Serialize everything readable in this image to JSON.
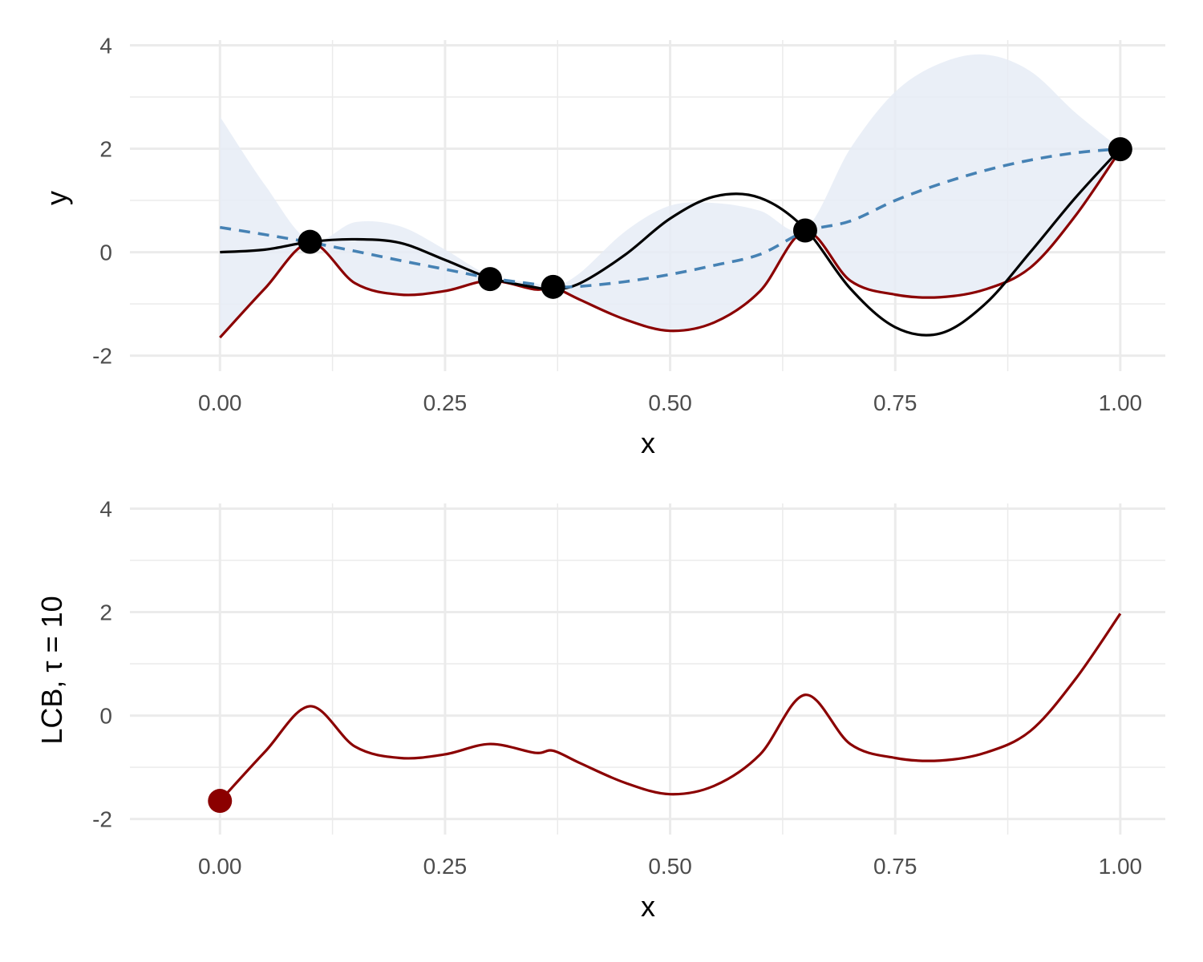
{
  "colors": {
    "truth": "#000000",
    "mean": "#4682b4",
    "lcb": "#8b0000",
    "band": "#e6ecf6",
    "observations": "#000000",
    "lcb_min_point": "#8b0000"
  },
  "chart_data": [
    {
      "type": "line",
      "xlabel": "x",
      "ylabel": "y",
      "xlim": [
        -0.1,
        1.05
      ],
      "ylim": [
        -2.3,
        4.1
      ],
      "x_ticks": [
        0.0,
        0.25,
        0.5,
        0.75,
        1.0
      ],
      "x_tick_labels": [
        "0.00",
        "0.25",
        "0.50",
        "0.75",
        "1.00"
      ],
      "y_ticks": [
        -2,
        0,
        2,
        4
      ],
      "y_tick_labels": [
        "-2",
        "0",
        "2",
        "4"
      ],
      "grid": true,
      "x": [
        0.0,
        0.05,
        0.1,
        0.15,
        0.2,
        0.25,
        0.3,
        0.35,
        0.37,
        0.4,
        0.45,
        0.5,
        0.55,
        0.6,
        0.65,
        0.7,
        0.75,
        0.8,
        0.85,
        0.9,
        0.95,
        1.0
      ],
      "series": [
        {
          "role": "band",
          "lower": [
            -1.65,
            -0.7,
            0.18,
            -0.6,
            -0.82,
            -0.75,
            -0.55,
            -0.72,
            -0.68,
            -0.92,
            -1.3,
            -1.52,
            -1.35,
            -0.75,
            0.4,
            -0.55,
            -0.82,
            -0.87,
            -0.72,
            -0.3,
            0.7,
            1.97
          ],
          "upper": [
            2.62,
            1.3,
            0.22,
            0.58,
            0.5,
            0.05,
            -0.45,
            -0.6,
            -0.68,
            -0.4,
            0.4,
            0.9,
            0.95,
            0.8,
            0.45,
            2.0,
            3.1,
            3.65,
            3.82,
            3.5,
            2.7,
            2.0
          ]
        },
        {
          "role": "truth",
          "style": "solid",
          "values": [
            0.0,
            0.05,
            0.2,
            0.25,
            0.18,
            -0.15,
            -0.5,
            -0.68,
            -0.72,
            -0.6,
            -0.05,
            0.65,
            1.08,
            1.05,
            0.45,
            -0.7,
            -1.45,
            -1.57,
            -1.0,
            0.0,
            1.05,
            2.0
          ]
        },
        {
          "role": "mean",
          "style": "dashed",
          "values": [
            0.48,
            0.34,
            0.19,
            0.02,
            -0.16,
            -0.33,
            -0.5,
            -0.62,
            -0.67,
            -0.66,
            -0.57,
            -0.43,
            -0.25,
            -0.04,
            0.4,
            0.6,
            1.0,
            1.32,
            1.58,
            1.78,
            1.92,
            2.0
          ]
        },
        {
          "role": "lcb",
          "style": "solid",
          "values": [
            -1.65,
            -0.7,
            0.18,
            -0.6,
            -0.82,
            -0.75,
            -0.55,
            -0.72,
            -0.68,
            -0.92,
            -1.3,
            -1.52,
            -1.35,
            -0.75,
            0.4,
            -0.55,
            -0.82,
            -0.87,
            -0.72,
            -0.3,
            0.7,
            1.97
          ]
        }
      ],
      "observations": {
        "x": [
          0.1,
          0.3,
          0.37,
          0.65,
          1.0
        ],
        "y": [
          0.2,
          -0.52,
          -0.67,
          0.42,
          1.99
        ]
      }
    },
    {
      "type": "line",
      "xlabel": "x",
      "ylabel": "LCB, τ = 10",
      "xlim": [
        -0.1,
        1.05
      ],
      "ylim": [
        -2.3,
        4.1
      ],
      "x_ticks": [
        0.0,
        0.25,
        0.5,
        0.75,
        1.0
      ],
      "x_tick_labels": [
        "0.00",
        "0.25",
        "0.50",
        "0.75",
        "1.00"
      ],
      "y_ticks": [
        -2,
        0,
        2,
        4
      ],
      "y_tick_labels": [
        "-2",
        "0",
        "2",
        "4"
      ],
      "grid": true,
      "x": [
        0.0,
        0.05,
        0.1,
        0.15,
        0.2,
        0.25,
        0.3,
        0.35,
        0.37,
        0.4,
        0.45,
        0.5,
        0.55,
        0.6,
        0.65,
        0.7,
        0.75,
        0.8,
        0.85,
        0.9,
        0.95,
        1.0
      ],
      "series": [
        {
          "role": "lcb",
          "style": "solid",
          "values": [
            -1.65,
            -0.7,
            0.18,
            -0.6,
            -0.82,
            -0.75,
            -0.55,
            -0.72,
            -0.68,
            -0.92,
            -1.3,
            -1.52,
            -1.35,
            -0.75,
            0.4,
            -0.55,
            -0.82,
            -0.87,
            -0.72,
            -0.3,
            0.7,
            1.97
          ]
        }
      ],
      "minimum_point": {
        "x": 0.0,
        "y": -1.65
      }
    }
  ]
}
